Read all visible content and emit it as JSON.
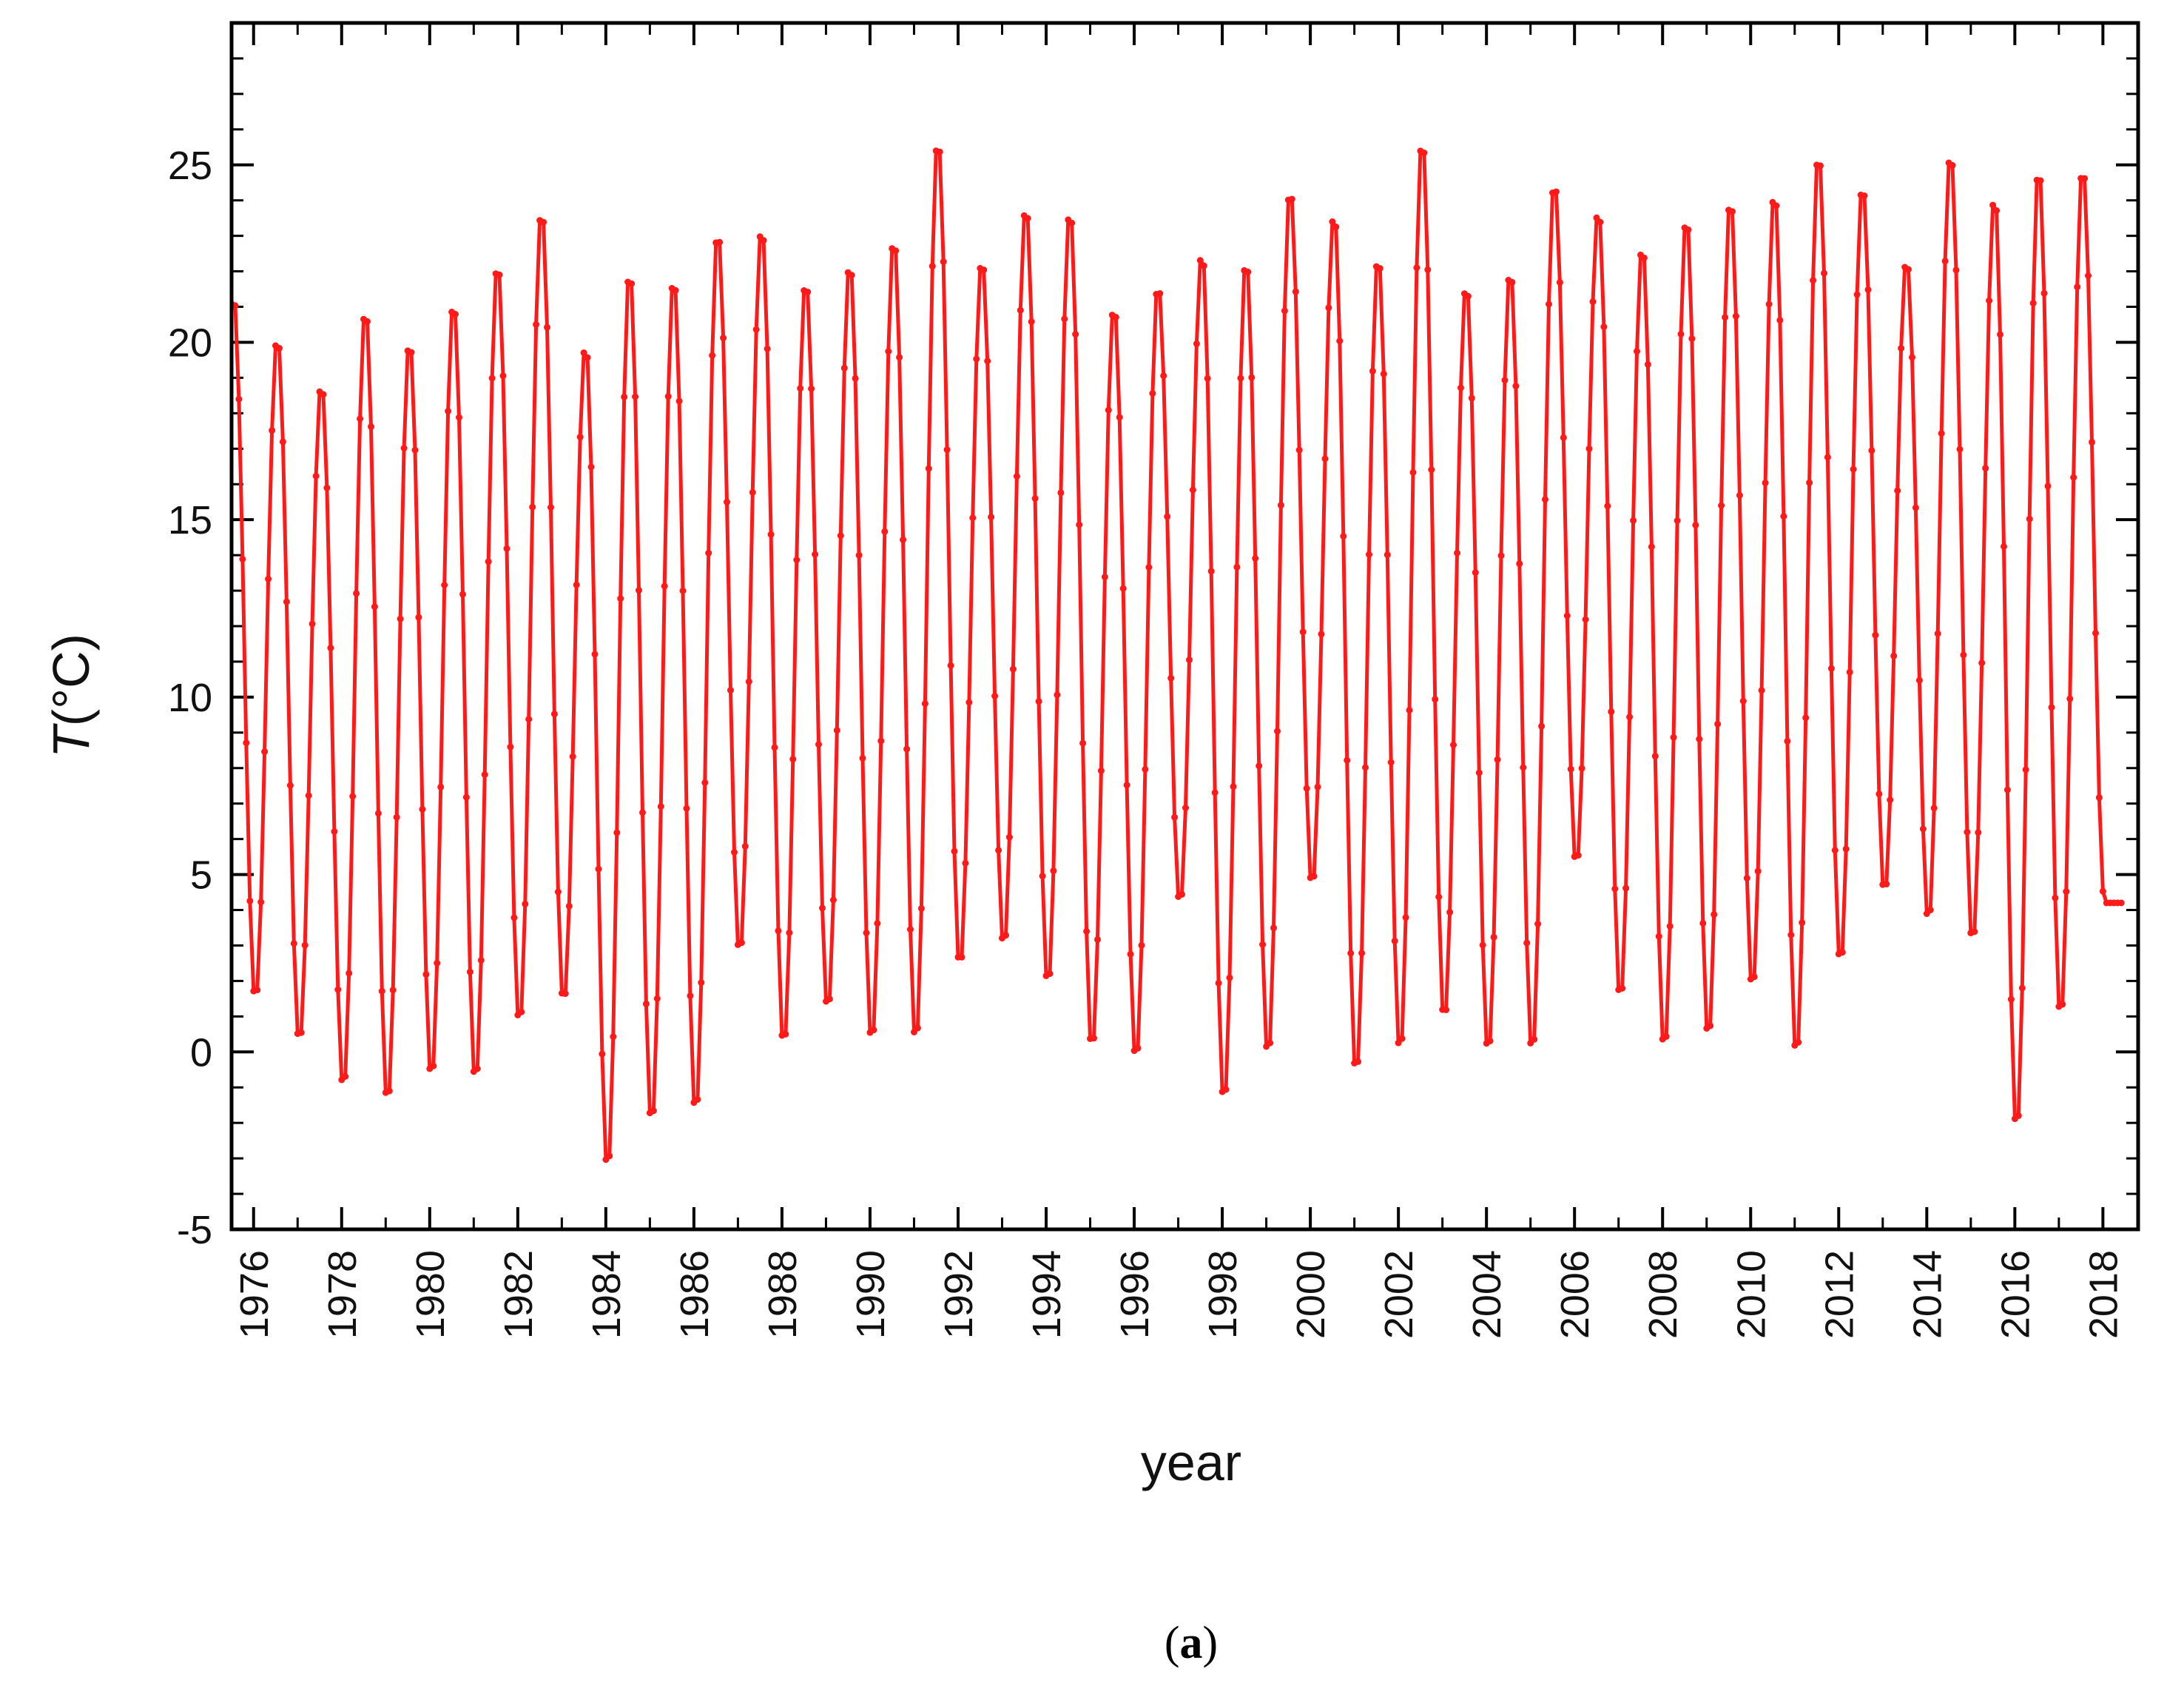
{
  "chart_data": {
    "type": "line",
    "xlabel": "year",
    "ylabel_var": "T",
    "ylabel_unit": "(°C)",
    "caption_letter": "a",
    "xlim": [
      1975.5,
      2018.8
    ],
    "ylim": [
      -5,
      29
    ],
    "x_ticks": [
      {
        "value": 1976,
        "label": "1976"
      },
      {
        "value": 1978,
        "label": "1978"
      },
      {
        "value": 1980,
        "label": "1980"
      },
      {
        "value": 1982,
        "label": "1982"
      },
      {
        "value": 1984,
        "label": "1984"
      },
      {
        "value": 1986,
        "label": "1986"
      },
      {
        "value": 1988,
        "label": "1988"
      },
      {
        "value": 1990,
        "label": "1990"
      },
      {
        "value": 1992,
        "label": "1992"
      },
      {
        "value": 1994,
        "label": "1994"
      },
      {
        "value": 1996,
        "label": "1996"
      },
      {
        "value": 1998,
        "label": "1998"
      },
      {
        "value": 2000,
        "label": "2000"
      },
      {
        "value": 2002,
        "label": "2002"
      },
      {
        "value": 2004,
        "label": "2004"
      },
      {
        "value": 2006,
        "label": "2006"
      },
      {
        "value": 2008,
        "label": "2008"
      },
      {
        "value": 2010,
        "label": "2010"
      },
      {
        "value": 2012,
        "label": "2012"
      },
      {
        "value": 2014,
        "label": "2014"
      },
      {
        "value": 2016,
        "label": "2016"
      },
      {
        "value": 2018,
        "label": "2018"
      }
    ],
    "y_ticks": [
      {
        "value": -5,
        "label": "-5"
      },
      {
        "value": 0,
        "label": "0"
      },
      {
        "value": 5,
        "label": "5"
      },
      {
        "value": 10,
        "label": "10"
      },
      {
        "value": 15,
        "label": "15"
      },
      {
        "value": 20,
        "label": "20"
      },
      {
        "value": 25,
        "label": "25"
      }
    ],
    "series": [
      {
        "color": "#ff1a1a",
        "marker": "dot",
        "yearly_min": [
          {
            "year": 1975,
            "value": 1.3
          },
          {
            "year": 1976,
            "value": 1.4
          },
          {
            "year": 1977,
            "value": 0.2
          },
          {
            "year": 1978,
            "value": -1.1
          },
          {
            "year": 1979,
            "value": -1.5
          },
          {
            "year": 1980,
            "value": -0.8
          },
          {
            "year": 1981,
            "value": -0.9
          },
          {
            "year": 1982,
            "value": 0.7
          },
          {
            "year": 1983,
            "value": 1.3
          },
          {
            "year": 1984,
            "value": -3.4
          },
          {
            "year": 1985,
            "value": -2.1
          },
          {
            "year": 1986,
            "value": -1.8
          },
          {
            "year": 1987,
            "value": 2.7
          },
          {
            "year": 1988,
            "value": 0.1
          },
          {
            "year": 1989,
            "value": 1.1
          },
          {
            "year": 1990,
            "value": 0.2
          },
          {
            "year": 1991,
            "value": 0.2
          },
          {
            "year": 1992,
            "value": 2.3
          },
          {
            "year": 1993,
            "value": 2.9
          },
          {
            "year": 1994,
            "value": 1.8
          },
          {
            "year": 1995,
            "value": 0.0
          },
          {
            "year": 1996,
            "value": -0.3
          },
          {
            "year": 1997,
            "value": 4.1
          },
          {
            "year": 1998,
            "value": -1.5
          },
          {
            "year": 1999,
            "value": -0.2
          },
          {
            "year": 2000,
            "value": 4.6
          },
          {
            "year": 2001,
            "value": -0.7
          },
          {
            "year": 2002,
            "value": -0.1
          },
          {
            "year": 2003,
            "value": 0.8
          },
          {
            "year": 2004,
            "value": -0.1
          },
          {
            "year": 2005,
            "value": -0.1
          },
          {
            "year": 2006,
            "value": 5.2
          },
          {
            "year": 2007,
            "value": 1.4
          },
          {
            "year": 2008,
            "value": 0.0
          },
          {
            "year": 2009,
            "value": 0.3
          },
          {
            "year": 2010,
            "value": 1.7
          },
          {
            "year": 2011,
            "value": -0.2
          },
          {
            "year": 2012,
            "value": 2.4
          },
          {
            "year": 2013,
            "value": 4.4
          },
          {
            "year": 2014,
            "value": 3.6
          },
          {
            "year": 2015,
            "value": 3.0
          },
          {
            "year": 2016,
            "value": -2.3
          },
          {
            "year": 2017,
            "value": 0.9
          },
          {
            "year": 2018,
            "value": 4.2
          }
        ],
        "yearly_max": [
          {
            "year": 1975,
            "value": 21.4
          },
          {
            "year": 1976,
            "value": 20.2
          },
          {
            "year": 1977,
            "value": 18.9
          },
          {
            "year": 1978,
            "value": 21.0
          },
          {
            "year": 1979,
            "value": 20.1
          },
          {
            "year": 1980,
            "value": 21.2
          },
          {
            "year": 1981,
            "value": 22.3
          },
          {
            "year": 1982,
            "value": 23.8
          },
          {
            "year": 1983,
            "value": 20.0
          },
          {
            "year": 1984,
            "value": 22.1
          },
          {
            "year": 1985,
            "value": 21.9
          },
          {
            "year": 1986,
            "value": 23.2
          },
          {
            "year": 1987,
            "value": 23.3
          },
          {
            "year": 1988,
            "value": 21.8
          },
          {
            "year": 1989,
            "value": 22.3
          },
          {
            "year": 1990,
            "value": 23.0
          },
          {
            "year": 1991,
            "value": 25.8
          },
          {
            "year": 1992,
            "value": 22.4
          },
          {
            "year": 1993,
            "value": 23.9
          },
          {
            "year": 1994,
            "value": 23.8
          },
          {
            "year": 1995,
            "value": 21.1
          },
          {
            "year": 1996,
            "value": 21.7
          },
          {
            "year": 1997,
            "value": 22.6
          },
          {
            "year": 1998,
            "value": 22.4
          },
          {
            "year": 1999,
            "value": 24.4
          },
          {
            "year": 2000,
            "value": 23.7
          },
          {
            "year": 2001,
            "value": 22.5
          },
          {
            "year": 2002,
            "value": 25.8
          },
          {
            "year": 2003,
            "value": 21.7
          },
          {
            "year": 2004,
            "value": 22.1
          },
          {
            "year": 2005,
            "value": 24.6
          },
          {
            "year": 2006,
            "value": 23.8
          },
          {
            "year": 2007,
            "value": 22.8
          },
          {
            "year": 2008,
            "value": 23.6
          },
          {
            "year": 2009,
            "value": 24.1
          },
          {
            "year": 2010,
            "value": 24.3
          },
          {
            "year": 2011,
            "value": 25.4
          },
          {
            "year": 2012,
            "value": 24.5
          },
          {
            "year": 2013,
            "value": 22.4
          },
          {
            "year": 2014,
            "value": 25.4
          },
          {
            "year": 2015,
            "value": 24.2
          },
          {
            "year": 2016,
            "value": 25.0
          },
          {
            "year": 2017,
            "value": 25.0
          }
        ]
      }
    ]
  }
}
